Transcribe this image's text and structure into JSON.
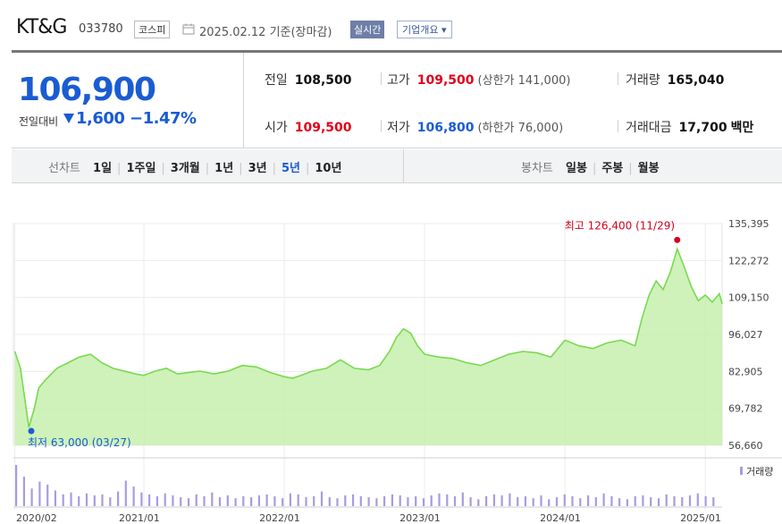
{
  "header": {
    "name": "KT&G",
    "code": "033780",
    "market": "코스피",
    "date_text": "2025.02.12 기준(장마감)",
    "realtime_label": "실시간",
    "overview_label": "기업개요 ▾"
  },
  "summary": {
    "price": "106,900",
    "change_label": "전일대비",
    "change_value": "1,600",
    "change_pct": "−1.47%",
    "prev_close": {
      "label": "전일",
      "value": "108,500"
    },
    "high": {
      "label": "고가",
      "value": "109,500",
      "sub": "(상한가 141,000)"
    },
    "volume": {
      "label": "거래량",
      "value": "165,040"
    },
    "open": {
      "label": "시가",
      "value": "109,500"
    },
    "low": {
      "label": "저가",
      "value": "106,800",
      "sub": "(하한가 76,000)"
    },
    "trade_amount": {
      "label": "거래대금",
      "value": "17,700",
      "unit": "백만"
    }
  },
  "tabs": {
    "line_label": "선차트",
    "line_periods": [
      "1일",
      "1주일",
      "3개월",
      "1년",
      "3년",
      "5년",
      "10년"
    ],
    "line_active": "5년",
    "candle_label": "봉차트",
    "candle_periods": [
      "일봉",
      "주봉",
      "월봉"
    ]
  },
  "colors": {
    "line": "#79d94f",
    "fill": "#c6f0ad",
    "volume": "#a79ce0",
    "price_down": "#1a5cd2",
    "price_up": "#e0001b"
  },
  "chart_data": {
    "type": "area",
    "y_ticks": [
      "135,395",
      "122,272",
      "109,150",
      "96,027",
      "82,905",
      "69,782",
      "56,660"
    ],
    "ylim": [
      56660,
      135395
    ],
    "x_ticks": [
      "2020/02",
      "2021/01",
      "2022/01",
      "2023/01",
      "2024/01",
      "2025/01"
    ],
    "x_tick_years": [
      2020.08,
      2021.0,
      2022.0,
      2023.0,
      2024.0,
      2025.0
    ],
    "xlim": [
      2020.07,
      2025.12
    ],
    "series": [
      {
        "name": "",
        "x": [
          2020.08,
          2020.12,
          2020.18,
          2020.22,
          2020.25,
          2020.3,
          2020.38,
          2020.46,
          2020.54,
          2020.62,
          2020.7,
          2020.78,
          2020.86,
          2020.94,
          2021.0,
          2021.08,
          2021.16,
          2021.24,
          2021.32,
          2021.4,
          2021.5,
          2021.6,
          2021.7,
          2021.8,
          2021.9,
          2022.0,
          2022.06,
          2022.12,
          2022.2,
          2022.3,
          2022.4,
          2022.5,
          2022.6,
          2022.68,
          2022.75,
          2022.8,
          2022.85,
          2022.9,
          2022.95,
          2023.0,
          2023.1,
          2023.2,
          2023.3,
          2023.4,
          2023.5,
          2023.6,
          2023.7,
          2023.8,
          2023.9,
          2024.0,
          2024.1,
          2024.2,
          2024.3,
          2024.4,
          2024.5,
          2024.55,
          2024.6,
          2024.65,
          2024.7,
          2024.75,
          2024.8,
          2024.85,
          2024.9,
          2024.95,
          2025.0,
          2025.05,
          2025.1,
          2025.12
        ],
        "y": [
          90000,
          84000,
          63000,
          70000,
          77000,
          80000,
          84000,
          86000,
          88000,
          89000,
          86000,
          84000,
          83000,
          82000,
          81500,
          83000,
          84000,
          82000,
          82500,
          83000,
          82000,
          83000,
          85000,
          84500,
          82500,
          81000,
          80500,
          81500,
          83000,
          84000,
          87000,
          84000,
          83500,
          85000,
          90000,
          95000,
          98000,
          96500,
          92000,
          89000,
          88000,
          87500,
          86000,
          85000,
          87000,
          89000,
          90000,
          89500,
          88000,
          94000,
          92000,
          91000,
          93000,
          94000,
          92000,
          102000,
          110000,
          115000,
          112000,
          118000,
          126400,
          120000,
          113000,
          108000,
          110000,
          107500,
          110500,
          106900
        ]
      }
    ],
    "volume": [
      42,
      30,
      18,
      25,
      22,
      16,
      12,
      14,
      10,
      13,
      11,
      12,
      9,
      15,
      26,
      20,
      14,
      12,
      10,
      13,
      11,
      9,
      8,
      12,
      10,
      14,
      9,
      11,
      8,
      10,
      9,
      11,
      12,
      10,
      8,
      13,
      12,
      9,
      10,
      15,
      9,
      8,
      11,
      12,
      10,
      9,
      8,
      10,
      12,
      11,
      9,
      10,
      8,
      11,
      13,
      12,
      10,
      14,
      9,
      7,
      10,
      12,
      11,
      13,
      9,
      10,
      8,
      11,
      7,
      9,
      12,
      10,
      8,
      11,
      9,
      13,
      10,
      8,
      7,
      10,
      11,
      9,
      8,
      12,
      10,
      9,
      11,
      13,
      10,
      9
    ],
    "annotations": {
      "high": "최고 126,400 (11/29)",
      "low": "최저 63,000 (03/27)"
    },
    "annotation_points": {
      "high": [
        2024.8,
        126400
      ],
      "low": [
        2020.18,
        63000
      ]
    },
    "volume_legend": "거래량"
  }
}
